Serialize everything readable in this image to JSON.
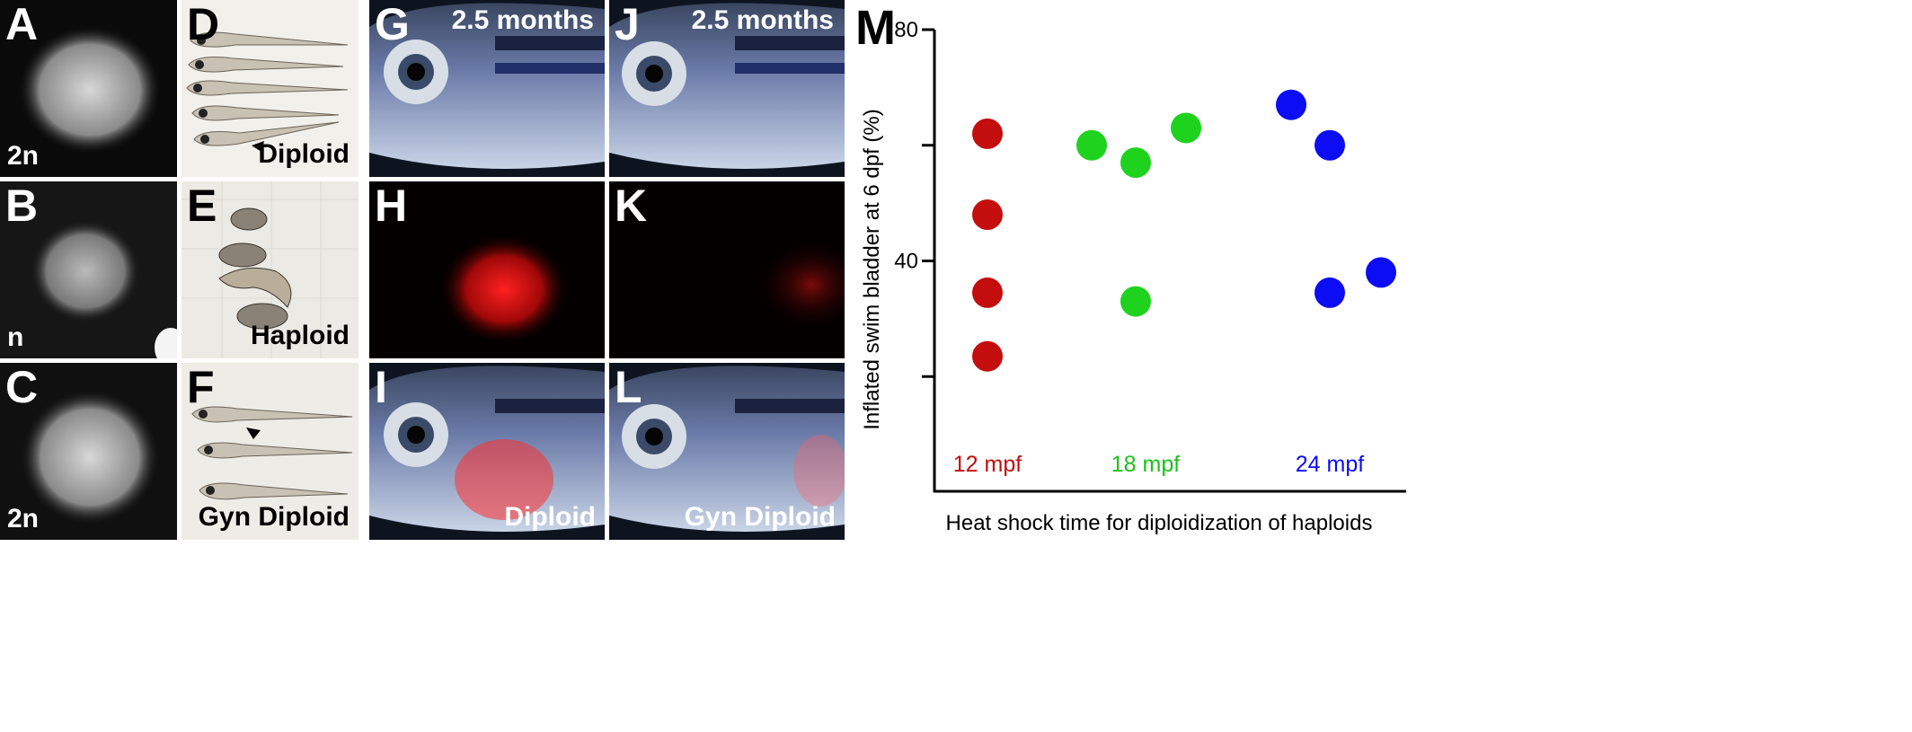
{
  "panels": {
    "A": {
      "letter": "A",
      "label": "2n"
    },
    "B": {
      "letter": "B",
      "label": "n"
    },
    "C": {
      "letter": "C",
      "label": "2n"
    },
    "D": {
      "letter": "D",
      "label": "Diploid"
    },
    "E": {
      "letter": "E",
      "label": "Haploid"
    },
    "F": {
      "letter": "F",
      "label": "Gyn Diploid"
    },
    "G": {
      "letter": "G",
      "label": "2.5 months"
    },
    "H": {
      "letter": "H"
    },
    "I": {
      "letter": "I",
      "label": "Diploid"
    },
    "J": {
      "letter": "J",
      "label": "2.5 months"
    },
    "K": {
      "letter": "K"
    },
    "L": {
      "letter": "L",
      "label": "Gyn Diploid"
    },
    "M": {
      "letter": "M"
    }
  },
  "chart_data": {
    "type": "scatter",
    "xlabel": "Heat shock time for diploidization of haploids",
    "ylabel": "Inflated swim bladder at 6 dpf (%)",
    "ylim": [
      0,
      80
    ],
    "yticks": [
      {
        "value": 80,
        "label": "80"
      },
      {
        "value": 60,
        "label": ""
      },
      {
        "value": 40,
        "label": "40"
      },
      {
        "value": 20,
        "label": ""
      }
    ],
    "grid": false,
    "categories": [
      "12 mpf",
      "18 mpf",
      "24 mpf"
    ],
    "series": [
      {
        "color": "#c40d0d",
        "label_color": "#c40d0d",
        "points": [
          {
            "x": "12 mpf",
            "y": 62
          },
          {
            "x": "12 mpf",
            "y": 48
          },
          {
            "x": "12 mpf",
            "y": 34.5
          },
          {
            "x": "12 mpf",
            "y": 23.5
          }
        ]
      },
      {
        "color": "#1ed21e",
        "label_color": "#17c417",
        "points": [
          {
            "x": "18 mpf",
            "y": 60
          },
          {
            "x": "18 mpf",
            "y": 57
          },
          {
            "x": "18 mpf",
            "y": 63
          },
          {
            "x": "18 mpf",
            "y": 33
          }
        ]
      },
      {
        "color": "#0c0cf5",
        "label_color": "#0c0cf5",
        "points": [
          {
            "x": "24 mpf",
            "y": 67
          },
          {
            "x": "24 mpf",
            "y": 60
          },
          {
            "x": "24 mpf",
            "y": 34.5
          },
          {
            "x": "24 mpf",
            "y": 38
          }
        ]
      }
    ]
  }
}
